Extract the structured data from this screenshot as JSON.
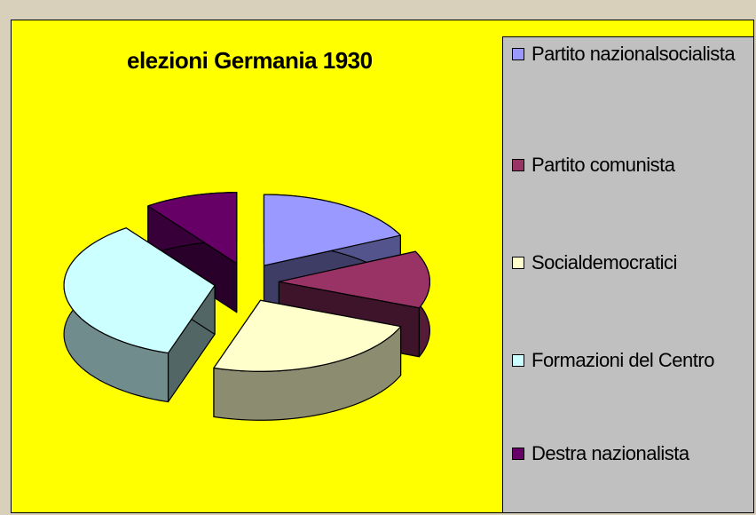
{
  "chart_data": {
    "type": "pie3d",
    "title": "elezioni Germania 1930",
    "categories": [
      "Partito nazionalsocialista",
      "Partito comunista",
      "Socialdemocratici",
      "Formazioni del Centro",
      "Destra nazionalista"
    ],
    "values": [
      18,
      13,
      24,
      35,
      10
    ],
    "colors": [
      "#9999ff",
      "#993366",
      "#ffffcc",
      "#ccffff",
      "#660066"
    ],
    "legend": "right"
  }
}
